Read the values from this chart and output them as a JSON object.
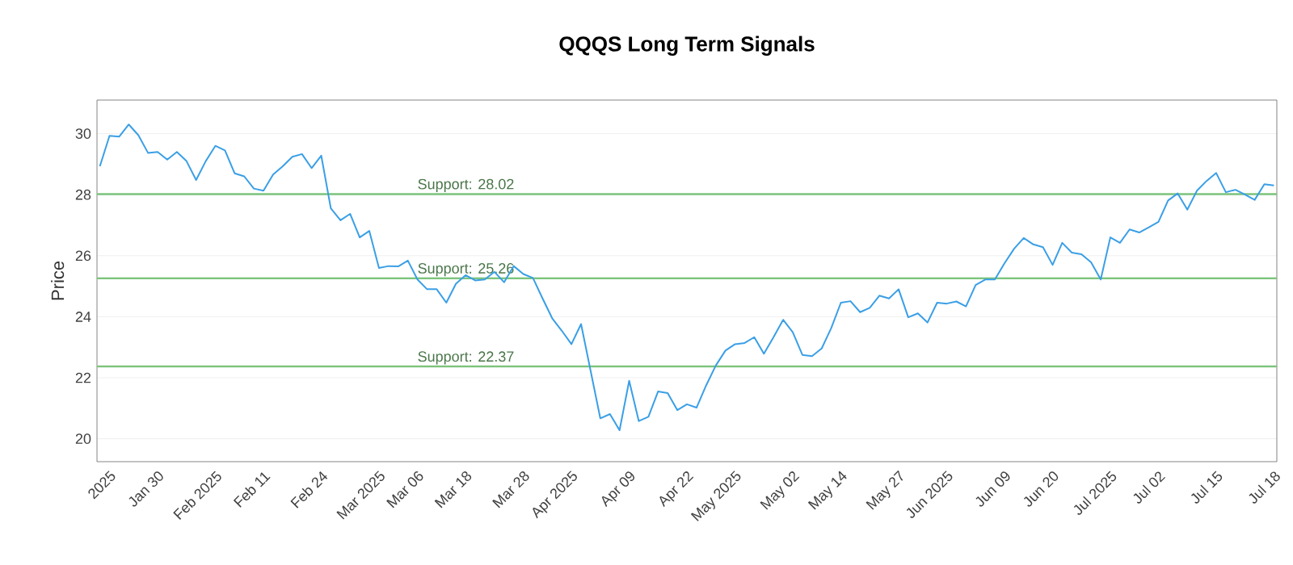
{
  "chart_data": {
    "type": "line",
    "title": "QQQS Long Term Signals",
    "ylabel": "Price",
    "ylim": [
      19.25,
      31.1
    ],
    "yticks": [
      20,
      22,
      24,
      26,
      28,
      30
    ],
    "grid": "y",
    "categories": [
      null,
      "2025",
      null,
      null,
      null,
      null,
      "Jan 30",
      null,
      null,
      null,
      null,
      null,
      "Feb 2025",
      null,
      null,
      null,
      null,
      "Feb 11",
      null,
      null,
      null,
      null,
      null,
      "Feb 24",
      null,
      null,
      null,
      null,
      null,
      "Mar 2025",
      null,
      null,
      null,
      "Mar 06",
      null,
      null,
      null,
      null,
      "Mar 18",
      null,
      null,
      null,
      null,
      null,
      "Mar 28",
      null,
      null,
      null,
      null,
      "Apr 2025",
      null,
      null,
      null,
      null,
      null,
      "Apr 09",
      null,
      null,
      null,
      null,
      null,
      "Apr 22",
      null,
      null,
      null,
      null,
      "May 2025",
      null,
      null,
      null,
      null,
      null,
      "May 02",
      null,
      null,
      null,
      null,
      "May 14",
      null,
      null,
      null,
      null,
      null,
      "May 27",
      null,
      null,
      null,
      null,
      "Jun 2025",
      null,
      null,
      null,
      null,
      null,
      "Jun 09",
      null,
      null,
      null,
      null,
      "Jun 20",
      null,
      null,
      null,
      null,
      null,
      "Jul 2025",
      null,
      null,
      null,
      null,
      "Jul 02",
      null,
      null,
      null,
      null,
      null,
      "Jul 15",
      null,
      null,
      null,
      null,
      null,
      "Jul 18"
    ],
    "series": [
      {
        "color": "#3a9fe6",
        "values": [
          28.93,
          29.93,
          29.9,
          30.3,
          29.95,
          29.37,
          29.4,
          29.15,
          29.4,
          29.1,
          28.48,
          29.1,
          29.6,
          29.45,
          28.7,
          28.6,
          28.2,
          28.13,
          28.66,
          28.93,
          29.24,
          29.33,
          28.87,
          29.28,
          27.55,
          27.16,
          27.37,
          26.6,
          26.81,
          25.6,
          25.66,
          25.65,
          25.84,
          25.22,
          24.9,
          24.9,
          24.46,
          25.08,
          25.36,
          25.19,
          25.22,
          25.47,
          25.13,
          25.66,
          25.4,
          25.27,
          24.6,
          23.95,
          23.54,
          23.1,
          23.76,
          22.22,
          20.67,
          20.81,
          20.28,
          21.9,
          20.58,
          20.72,
          21.55,
          21.5,
          20.94,
          21.13,
          21.02,
          21.75,
          22.4,
          22.89,
          23.1,
          23.14,
          23.33,
          22.79,
          23.33,
          23.9,
          23.49,
          22.75,
          22.71,
          22.96,
          23.63,
          24.46,
          24.51,
          24.15,
          24.29,
          24.69,
          24.6,
          24.9,
          23.98,
          24.11,
          23.81,
          24.46,
          24.43,
          24.5,
          24.34,
          25.04,
          25.22,
          25.22,
          25.75,
          26.23,
          26.58,
          26.37,
          26.28,
          25.7,
          26.42,
          26.1,
          26.05,
          25.78,
          25.22,
          26.6,
          26.42,
          26.86,
          26.76,
          26.93,
          27.11,
          27.81,
          28.04,
          27.51,
          28.13,
          28.45,
          28.71,
          28.08,
          28.16,
          28.0,
          27.83,
          28.34,
          28.3
        ]
      }
    ],
    "ref_lines": [
      {
        "axis": "y",
        "value": 28.02,
        "label": "Support: 28.02",
        "color": "#7cc47c"
      },
      {
        "axis": "y",
        "value": 25.26,
        "label": "Support: 25.26",
        "color": "#7cc47c"
      },
      {
        "axis": "y",
        "value": 22.37,
        "label": "Support: 22.37",
        "color": "#7cc47c"
      }
    ]
  }
}
